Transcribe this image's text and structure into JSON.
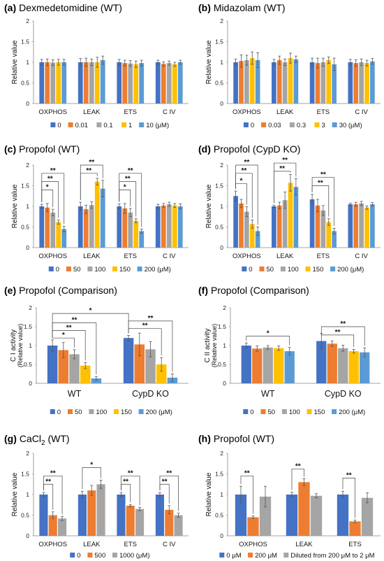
{
  "chart_data": [
    {
      "id": "a",
      "type": "bar",
      "panel_label": "(a)",
      "title": "Dexmedetomidine (WT)",
      "ylabel": "Relative value",
      "ylim": [
        0,
        2
      ],
      "yticks": [
        0,
        0.5,
        1,
        1.5,
        2
      ],
      "categories": [
        "OXPHOS",
        "LEAK",
        "ETS",
        "C IV"
      ],
      "legend_labels": [
        "0",
        "0.01",
        "0.1",
        "1",
        "10 (μM)"
      ],
      "series": [
        {
          "name": "0",
          "color": "#4472C4",
          "values": [
            1.0,
            1.0,
            1.0,
            1.0
          ],
          "errors": [
            0.07,
            0.09,
            0.07,
            0.05
          ]
        },
        {
          "name": "0.01",
          "color": "#ED7D31",
          "values": [
            1.0,
            1.0,
            0.98,
            0.96
          ],
          "errors": [
            0.08,
            0.1,
            0.07,
            0.05
          ]
        },
        {
          "name": "0.1",
          "color": "#A5A5A5",
          "values": [
            0.99,
            1.0,
            0.97,
            0.98
          ],
          "errors": [
            0.07,
            0.08,
            0.07,
            0.05
          ]
        },
        {
          "name": "1",
          "color": "#FFC000",
          "values": [
            1.0,
            1.0,
            0.95,
            0.95
          ],
          "errors": [
            0.07,
            0.12,
            0.08,
            0.05
          ]
        },
        {
          "name": "10 (μM)",
          "color": "#5B9BD5",
          "values": [
            1.0,
            1.05,
            0.98,
            1.0
          ],
          "errors": [
            0.07,
            0.1,
            0.07,
            0.05
          ]
        }
      ],
      "brackets": []
    },
    {
      "id": "b",
      "type": "bar",
      "panel_label": "(b)",
      "title": "Midazolam (WT)",
      "ylabel": "Relative value",
      "ylim": [
        0,
        2
      ],
      "yticks": [
        0,
        0.5,
        1,
        1.5,
        2
      ],
      "categories": [
        "OXPHOS",
        "LEAK",
        "ETS",
        "C IV"
      ],
      "legend_labels": [
        "0",
        "0.03",
        "0.3",
        "3",
        "30 (μM)"
      ],
      "series": [
        {
          "name": "0",
          "color": "#4472C4",
          "values": [
            1.0,
            1.0,
            1.0,
            1.0
          ],
          "errors": [
            0.08,
            0.07,
            0.1,
            0.07
          ]
        },
        {
          "name": "0.03",
          "color": "#ED7D31",
          "values": [
            1.03,
            1.05,
            0.98,
            0.98
          ],
          "errors": [
            0.15,
            0.1,
            0.12,
            0.08
          ]
        },
        {
          "name": "0.3",
          "color": "#A5A5A5",
          "values": [
            1.05,
            1.0,
            1.0,
            1.0
          ],
          "errors": [
            0.12,
            0.08,
            0.1,
            0.08
          ]
        },
        {
          "name": "3",
          "color": "#FFC000",
          "values": [
            1.1,
            1.1,
            1.05,
            0.98
          ],
          "errors": [
            0.15,
            0.12,
            0.08,
            0.07
          ]
        },
        {
          "name": "30 (μM)",
          "color": "#5B9BD5",
          "values": [
            1.05,
            1.07,
            0.95,
            1.02
          ],
          "errors": [
            0.18,
            0.08,
            0.15,
            0.07
          ]
        }
      ],
      "brackets": []
    },
    {
      "id": "c",
      "type": "bar",
      "panel_label": "(c)",
      "title": "Propofol (WT)",
      "ylabel": "Relative value",
      "ylim": [
        0,
        2
      ],
      "yticks": [
        0,
        0.5,
        1,
        1.5,
        2
      ],
      "categories": [
        "OXPHOS",
        "LEAK",
        "ETS",
        "C IV"
      ],
      "legend_labels": [
        "0",
        "50",
        "100",
        "150",
        "200 (μM)"
      ],
      "series": [
        {
          "name": "0",
          "color": "#4472C4",
          "values": [
            1.0,
            1.0,
            1.0,
            1.0
          ],
          "errors": [
            0.05,
            0.1,
            0.06,
            0.05
          ]
        },
        {
          "name": "50",
          "color": "#ED7D31",
          "values": [
            0.97,
            0.93,
            0.95,
            1.02
          ],
          "errors": [
            0.1,
            0.1,
            0.12,
            0.05
          ]
        },
        {
          "name": "100",
          "color": "#A5A5A5",
          "values": [
            0.85,
            1.03,
            0.85,
            1.05
          ],
          "errors": [
            0.08,
            0.08,
            0.1,
            0.05
          ]
        },
        {
          "name": "150",
          "color": "#FFC000",
          "values": [
            0.62,
            1.6,
            0.65,
            1.02
          ],
          "errors": [
            0.05,
            0.08,
            0.05,
            0.05
          ]
        },
        {
          "name": "200 (μM)",
          "color": "#5B9BD5",
          "values": [
            0.45,
            1.43,
            0.4,
            1.0
          ],
          "errors": [
            0.07,
            0.2,
            0.05,
            0.06
          ]
        }
      ],
      "brackets": [
        {
          "group": 0,
          "from": 0,
          "to": 2,
          "level": 1.4,
          "label": "*"
        },
        {
          "group": 0,
          "from": 0,
          "to": 3,
          "level": 1.6,
          "label": "**"
        },
        {
          "group": 0,
          "from": 0,
          "to": 4,
          "level": 1.8,
          "label": "**"
        },
        {
          "group": 1,
          "from": 0,
          "to": 3,
          "level": 1.8,
          "label": "**"
        },
        {
          "group": 1,
          "from": 0,
          "to": 4,
          "level": 2.0,
          "label": "**"
        },
        {
          "group": 2,
          "from": 0,
          "to": 2,
          "level": 1.4,
          "label": "*"
        },
        {
          "group": 2,
          "from": 0,
          "to": 3,
          "level": 1.6,
          "label": "**"
        },
        {
          "group": 2,
          "from": 0,
          "to": 4,
          "level": 1.8,
          "label": "**"
        }
      ]
    },
    {
      "id": "d",
      "type": "bar",
      "panel_label": "(d)",
      "title": "Propofol (CypD KO)",
      "ylabel": "Relative value",
      "ylim": [
        0,
        2
      ],
      "yticks": [
        0,
        0.5,
        1,
        1.5,
        2
      ],
      "categories": [
        "OXPHOS",
        "LEAK",
        "ETS",
        "C IV"
      ],
      "legend_labels": [
        "0",
        "50",
        "100",
        "150",
        "200 (μM)"
      ],
      "series": [
        {
          "name": "0",
          "color": "#4472C4",
          "values": [
            1.25,
            1.0,
            1.17,
            1.05
          ],
          "errors": [
            0.12,
            0.03,
            0.12,
            0.03
          ]
        },
        {
          "name": "50",
          "color": "#ED7D31",
          "values": [
            1.07,
            1.02,
            1.02,
            1.05
          ],
          "errors": [
            0.1,
            0.08,
            0.15,
            0.05
          ]
        },
        {
          "name": "100",
          "color": "#A5A5A5",
          "values": [
            0.87,
            1.15,
            0.9,
            1.07
          ],
          "errors": [
            0.12,
            0.2,
            0.12,
            0.05
          ]
        },
        {
          "name": "150",
          "color": "#FFC000",
          "values": [
            0.57,
            1.57,
            0.62,
            0.97
          ],
          "errors": [
            0.1,
            0.2,
            0.08,
            0.04
          ]
        },
        {
          "name": "200 (μM)",
          "color": "#5B9BD5",
          "values": [
            0.4,
            1.47,
            0.4,
            1.05
          ],
          "errors": [
            0.1,
            0.2,
            0.07,
            0.04
          ]
        }
      ],
      "brackets": [
        {
          "group": 0,
          "from": 0,
          "to": 2,
          "level": 1.55,
          "label": "*"
        },
        {
          "group": 0,
          "from": 0,
          "to": 3,
          "level": 1.8,
          "label": "**"
        },
        {
          "group": 0,
          "from": 0,
          "to": 4,
          "level": 2.0,
          "label": "**"
        },
        {
          "group": 1,
          "from": 0,
          "to": 3,
          "level": 1.85,
          "label": "**"
        },
        {
          "group": 1,
          "from": 0,
          "to": 4,
          "level": 2.05,
          "label": "**"
        },
        {
          "group": 2,
          "from": 0,
          "to": 3,
          "level": 1.5,
          "label": "**"
        },
        {
          "group": 2,
          "from": 0,
          "to": 4,
          "level": 1.7,
          "label": "**"
        }
      ]
    },
    {
      "id": "e",
      "type": "bar",
      "panel_label": "(e)",
      "title": "Propofol (Comparison)",
      "ylabel": "C I activity",
      "ylabel2": "(Relative value)",
      "ylim": [
        0,
        2
      ],
      "yticks": [
        0,
        0.5,
        1,
        1.5,
        2
      ],
      "categories": [
        "WT",
        "CypD KO"
      ],
      "legend_labels": [
        "0",
        "50",
        "100",
        "150",
        "200 (μM)"
      ],
      "series": [
        {
          "name": "0",
          "color": "#4472C4",
          "values": [
            1.0,
            1.2
          ],
          "errors": [
            0.15,
            0.07
          ]
        },
        {
          "name": "50",
          "color": "#ED7D31",
          "values": [
            0.88,
            1.03
          ],
          "errors": [
            0.2,
            0.3
          ]
        },
        {
          "name": "100",
          "color": "#A5A5A5",
          "values": [
            0.77,
            0.9
          ],
          "errors": [
            0.12,
            0.2
          ]
        },
        {
          "name": "150",
          "color": "#FFC000",
          "values": [
            0.47,
            0.5
          ],
          "errors": [
            0.08,
            0.18
          ]
        },
        {
          "name": "200 (μM)",
          "color": "#5B9BD5",
          "values": [
            0.13,
            0.15
          ],
          "errors": [
            0.05,
            0.1
          ]
        }
      ],
      "brackets": [
        {
          "group": 0,
          "from": 0,
          "to": 2,
          "level": 1.2,
          "label": "*"
        },
        {
          "group": 0,
          "from": 0,
          "to": 3,
          "level": 1.4,
          "label": "**"
        },
        {
          "group": 0,
          "from": 0,
          "to": 4,
          "level": 1.6,
          "label": "**"
        },
        {
          "group": 1,
          "from": 0,
          "to": 3,
          "level": 1.45,
          "label": "**"
        },
        {
          "group": 1,
          "from": 0,
          "to": 4,
          "level": 1.65,
          "label": "**"
        }
      ],
      "cross_brackets": [
        {
          "g1": 0,
          "g2": 1,
          "s": 0,
          "level": 1.85,
          "label": "*"
        }
      ]
    },
    {
      "id": "f",
      "type": "bar",
      "panel_label": "(f)",
      "title": "Propofol (Comparison)",
      "ylabel": "C II activity",
      "ylabel2": "(Relative value)",
      "ylim": [
        0,
        2
      ],
      "yticks": [
        0,
        0.5,
        1,
        1.5,
        2
      ],
      "categories": [
        "WT",
        "CypD KO"
      ],
      "legend_labels": [
        "0",
        "50",
        "100",
        "150",
        "200 (μM)"
      ],
      "series": [
        {
          "name": "0",
          "color": "#4472C4",
          "values": [
            1.0,
            1.12
          ],
          "errors": [
            0.07,
            0.2
          ]
        },
        {
          "name": "50",
          "color": "#ED7D31",
          "values": [
            0.92,
            1.05
          ],
          "errors": [
            0.07,
            0.07
          ]
        },
        {
          "name": "100",
          "color": "#A5A5A5",
          "values": [
            0.95,
            0.93
          ],
          "errors": [
            0.05,
            0.08
          ]
        },
        {
          "name": "150",
          "color": "#FFC000",
          "values": [
            0.93,
            0.85
          ],
          "errors": [
            0.06,
            0.05
          ]
        },
        {
          "name": "200 (μM)",
          "color": "#5B9BD5",
          "values": [
            0.85,
            0.82
          ],
          "errors": [
            0.1,
            0.12
          ]
        }
      ],
      "brackets": [
        {
          "group": 1,
          "from": 0,
          "to": 3,
          "level": 1.28,
          "label": "**"
        },
        {
          "group": 1,
          "from": 0,
          "to": 4,
          "level": 1.5,
          "label": "**"
        }
      ],
      "cross_brackets": [],
      "extra_brackets": [
        {
          "g1": 0,
          "s1": 0,
          "g2": 0,
          "s2": 4,
          "level": 1.25,
          "label": "*"
        }
      ]
    },
    {
      "id": "g",
      "type": "bar",
      "panel_label": "(g)",
      "title_main": "CaCl",
      "title_sub": "2",
      "title_tail": " (WT)",
      "ylabel": "Relative value",
      "ylim": [
        0,
        2
      ],
      "yticks": [
        0,
        0.5,
        1,
        1.5,
        2
      ],
      "categories": [
        "OXPHOS",
        "LEAK",
        "ETS",
        "C IV"
      ],
      "legend_labels": [
        "0",
        "500",
        "1000 (μM)"
      ],
      "series": [
        {
          "name": "0",
          "color": "#4472C4",
          "values": [
            1.0,
            1.0,
            1.0,
            1.0
          ],
          "errors": [
            0.05,
            0.08,
            0.05,
            0.05
          ]
        },
        {
          "name": "500",
          "color": "#ED7D31",
          "values": [
            0.5,
            1.1,
            0.73,
            0.63
          ],
          "errors": [
            0.08,
            0.12,
            0.03,
            0.1
          ]
        },
        {
          "name": "1000 (μM)",
          "color": "#A5A5A5",
          "values": [
            0.42,
            1.25,
            0.65,
            0.5
          ],
          "errors": [
            0.05,
            0.1,
            0.04,
            0.05
          ]
        }
      ],
      "brackets": [
        {
          "group": 0,
          "from": 0,
          "to": 1,
          "level": 1.25,
          "label": "**"
        },
        {
          "group": 0,
          "from": 0,
          "to": 2,
          "level": 1.45,
          "label": "**"
        },
        {
          "group": 1,
          "from": 0,
          "to": 2,
          "level": 1.65,
          "label": "*"
        },
        {
          "group": 2,
          "from": 0,
          "to": 1,
          "level": 1.25,
          "label": "**"
        },
        {
          "group": 2,
          "from": 0,
          "to": 2,
          "level": 1.45,
          "label": "**"
        },
        {
          "group": 3,
          "from": 0,
          "to": 1,
          "level": 1.25,
          "label": "**"
        },
        {
          "group": 3,
          "from": 0,
          "to": 2,
          "level": 1.45,
          "label": "**"
        }
      ]
    },
    {
      "id": "h",
      "type": "bar",
      "panel_label": "(h)",
      "title": "Propofol (WT)",
      "ylabel": "Relative value",
      "ylim": [
        0,
        2
      ],
      "yticks": [
        0,
        0.5,
        1,
        1.5,
        2
      ],
      "categories": [
        "OXPHOS",
        "LEAK",
        "ETS"
      ],
      "legend_labels": [
        "0 μM",
        "200 μM",
        "Diluted from 200 μM to 2 μM"
      ],
      "series": [
        {
          "name": "0 μM",
          "color": "#4472C4",
          "values": [
            1.0,
            1.0,
            1.0
          ],
          "errors": [
            0.2,
            0.06,
            0.08
          ]
        },
        {
          "name": "200 μM",
          "color": "#ED7D31",
          "values": [
            0.45,
            1.3,
            0.35
          ],
          "errors": [
            0.03,
            0.08,
            0.03
          ]
        },
        {
          "name": "Diluted from 200 μM to 2 μM",
          "color": "#A5A5A5",
          "values": [
            0.95,
            0.97,
            0.92
          ],
          "errors": [
            0.25,
            0.05,
            0.12
          ]
        }
      ],
      "brackets": [
        {
          "group": 0,
          "from": 0,
          "to": 1,
          "level": 1.45,
          "label": "**"
        },
        {
          "group": 1,
          "from": 0,
          "to": 1,
          "level": 1.62,
          "label": "**"
        },
        {
          "group": 2,
          "from": 0,
          "to": 1,
          "level": 1.4,
          "label": "**"
        }
      ]
    }
  ]
}
